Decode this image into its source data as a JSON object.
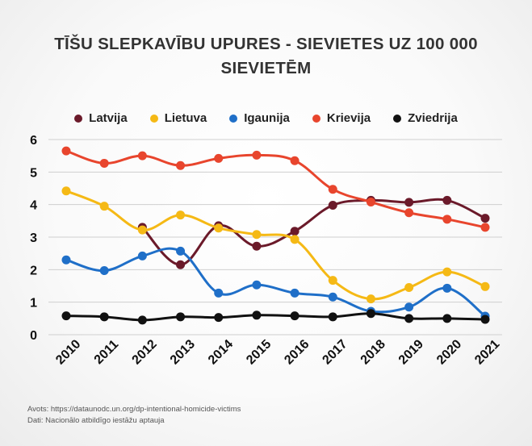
{
  "title_lines": [
    "TĪŠU SLEPKAVĪBU UPURES - SIEVIETES UZ 100 000",
    "SIEVIETĒM"
  ],
  "source_lines": [
    "Avots: https://dataunodc.un.org/dp-intentional-homicide-victims",
    "Dati: Nacionālo atbildīgo iestāžu aptauja"
  ],
  "chart_data": {
    "type": "line",
    "title": "TĪŠU SLEPKAVĪBU UPURES - SIEVIETES UZ 100 000 SIEVIETĒM",
    "x": [
      "2010",
      "2011",
      "2012",
      "2013",
      "2014",
      "2015",
      "2016",
      "2017",
      "2018",
      "2019",
      "2020",
      "2021"
    ],
    "ylim": [
      0,
      6
    ],
    "yticks": [
      0,
      1,
      2,
      3,
      4,
      5,
      6
    ],
    "grid": true,
    "legend_position": "top",
    "series": [
      {
        "name": "Latvija",
        "color": "#6b1a2a",
        "values": [
          null,
          null,
          3.3,
          2.15,
          3.35,
          2.72,
          3.18,
          3.98,
          4.13,
          4.07,
          4.13,
          3.58
        ]
      },
      {
        "name": "Lietuva",
        "color": "#f5b915",
        "values": [
          4.42,
          3.95,
          3.22,
          3.68,
          3.28,
          3.08,
          2.93,
          1.67,
          1.1,
          1.45,
          1.93,
          1.48
        ]
      },
      {
        "name": "Igaunija",
        "color": "#1f6fc8",
        "values": [
          2.3,
          1.97,
          2.42,
          2.57,
          1.28,
          1.53,
          1.28,
          1.16,
          0.72,
          0.85,
          1.43,
          0.57
        ]
      },
      {
        "name": "Krievija",
        "color": "#e8452d",
        "values": [
          5.65,
          5.27,
          5.5,
          5.2,
          5.42,
          5.52,
          5.35,
          4.47,
          4.08,
          3.75,
          3.55,
          3.3
        ]
      },
      {
        "name": "Zviedrija",
        "color": "#111111",
        "values": [
          0.58,
          0.55,
          0.45,
          0.55,
          0.53,
          0.6,
          0.58,
          0.55,
          0.65,
          0.5,
          0.5,
          0.47
        ]
      }
    ]
  }
}
